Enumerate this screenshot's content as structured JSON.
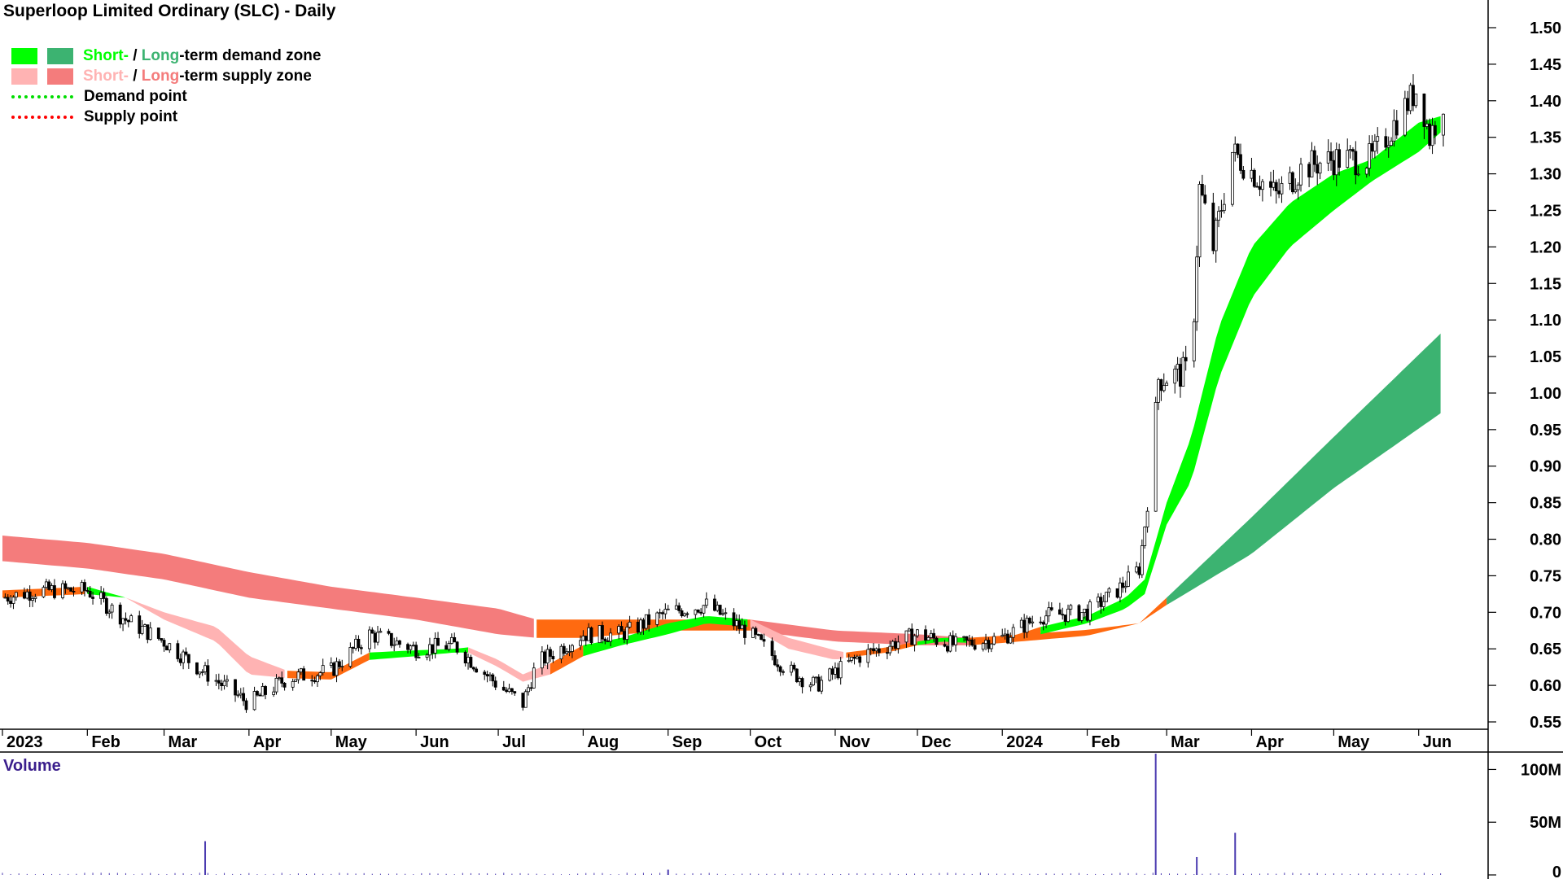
{
  "title": "Superloop Limited Ordinary (SLC) - Daily",
  "legend": {
    "row1": {
      "short": "Short-",
      "sep": " / ",
      "long": "Long",
      "rest": "-term demand zone"
    },
    "row2": {
      "short": "Short-",
      "sep": " / ",
      "long": "Long",
      "rest": "-term supply zone"
    },
    "row3": "Demand point",
    "row4": "Supply point"
  },
  "colors": {
    "short_demand": "#00ff00",
    "long_demand": "#3cb371",
    "short_supply": "#ffb3b3",
    "long_supply": "#f47c7c",
    "supply_to_demand": "#ff6a10",
    "demand_point": "#00dd00",
    "supply_point": "#ff0000",
    "volume_bar": "#4b3bb0",
    "volume_label": "#3a1e8c"
  },
  "volume_label": "Volume",
  "chart_data": [
    {
      "type": "candlestick",
      "title": "Superloop Limited Ordinary (SLC) - Daily",
      "x_ticks": [
        "2023",
        "Feb",
        "Mar",
        "Apr",
        "May",
        "Jun",
        "Jul",
        "Aug",
        "Sep",
        "Oct",
        "Nov",
        "Dec",
        "2024",
        "Feb",
        "Mar",
        "Apr",
        "May",
        "Jun"
      ],
      "y_ticks": [
        "0.55",
        "0.60",
        "0.65",
        "0.70",
        "0.75",
        "0.80",
        "0.85",
        "0.90",
        "0.95",
        "1.00",
        "1.05",
        "1.10",
        "1.15",
        "1.20",
        "1.25",
        "1.30",
        "1.35",
        "1.40",
        "1.45",
        "1.50"
      ],
      "ylim": [
        0.53,
        1.52
      ],
      "price_path": [
        {
          "x": "2023-01-01",
          "y": 0.72
        },
        {
          "x": "2023-01-15",
          "y": 0.73
        },
        {
          "x": "2023-02-01",
          "y": 0.73
        },
        {
          "x": "2023-02-15",
          "y": 0.69
        },
        {
          "x": "2023-03-01",
          "y": 0.66
        },
        {
          "x": "2023-03-15",
          "y": 0.62
        },
        {
          "x": "2023-04-01",
          "y": 0.575
        },
        {
          "x": "2023-04-15",
          "y": 0.61
        },
        {
          "x": "2023-05-01",
          "y": 0.62
        },
        {
          "x": "2023-05-15",
          "y": 0.67
        },
        {
          "x": "2023-06-01",
          "y": 0.65
        },
        {
          "x": "2023-06-15",
          "y": 0.655
        },
        {
          "x": "2023-07-01",
          "y": 0.6
        },
        {
          "x": "2023-07-10",
          "y": 0.575
        },
        {
          "x": "2023-07-15",
          "y": 0.63
        },
        {
          "x": "2023-08-01",
          "y": 0.67
        },
        {
          "x": "2023-08-15",
          "y": 0.67
        },
        {
          "x": "2023-09-01",
          "y": 0.7
        },
        {
          "x": "2023-09-15",
          "y": 0.71
        },
        {
          "x": "2023-10-01",
          "y": 0.67
        },
        {
          "x": "2023-10-15",
          "y": 0.62
        },
        {
          "x": "2023-10-25",
          "y": 0.6
        },
        {
          "x": "2023-11-10",
          "y": 0.64
        },
        {
          "x": "2023-12-01",
          "y": 0.67
        },
        {
          "x": "2023-12-15",
          "y": 0.655
        },
        {
          "x": "2024-01-01",
          "y": 0.665
        },
        {
          "x": "2024-01-15",
          "y": 0.695
        },
        {
          "x": "2024-02-01",
          "y": 0.7
        },
        {
          "x": "2024-02-12",
          "y": 0.73
        },
        {
          "x": "2024-02-20",
          "y": 0.76
        },
        {
          "x": "2024-02-23",
          "y": 0.85
        },
        {
          "x": "2024-02-27",
          "y": 1.02
        },
        {
          "x": "2024-03-10",
          "y": 1.03
        },
        {
          "x": "2024-03-13",
          "y": 1.28
        },
        {
          "x": "2024-03-18",
          "y": 1.2
        },
        {
          "x": "2024-03-25",
          "y": 1.33
        },
        {
          "x": "2024-04-10",
          "y": 1.27
        },
        {
          "x": "2024-04-20",
          "y": 1.31
        },
        {
          "x": "2024-05-01",
          "y": 1.32
        },
        {
          "x": "2024-05-15",
          "y": 1.32
        },
        {
          "x": "2024-05-25",
          "y": 1.38
        },
        {
          "x": "2024-06-01",
          "y": 1.42
        },
        {
          "x": "2024-06-05",
          "y": 1.35
        },
        {
          "x": "2024-06-10",
          "y": 1.4
        }
      ],
      "short_term_zone": [
        {
          "x": "2023-01-01",
          "top": 0.73,
          "bottom": 0.72,
          "state": "supply-to-demand"
        },
        {
          "x": "2023-02-01",
          "top": 0.735,
          "bottom": 0.725,
          "state": "demand"
        },
        {
          "x": "2023-02-15",
          "top": 0.72,
          "bottom": 0.72,
          "state": "supply"
        },
        {
          "x": "2023-03-01",
          "top": 0.7,
          "bottom": 0.69,
          "state": "supply"
        },
        {
          "x": "2023-03-20",
          "top": 0.68,
          "bottom": 0.66,
          "state": "supply"
        },
        {
          "x": "2023-04-01",
          "top": 0.64,
          "bottom": 0.615,
          "state": "supply"
        },
        {
          "x": "2023-04-15",
          "top": 0.62,
          "bottom": 0.61,
          "state": "supply-to-demand"
        },
        {
          "x": "2023-05-01",
          "top": 0.618,
          "bottom": 0.608,
          "state": "supply-to-demand"
        },
        {
          "x": "2023-05-15",
          "top": 0.645,
          "bottom": 0.635,
          "state": "demand"
        },
        {
          "x": "2023-06-01",
          "top": 0.648,
          "bottom": 0.64,
          "state": "demand"
        },
        {
          "x": "2023-06-15",
          "top": 0.65,
          "bottom": 0.645,
          "state": "demand"
        },
        {
          "x": "2023-06-20",
          "top": 0.652,
          "bottom": 0.645,
          "state": "supply"
        },
        {
          "x": "2023-07-01",
          "top": 0.635,
          "bottom": 0.625,
          "state": "supply"
        },
        {
          "x": "2023-07-10",
          "top": 0.615,
          "bottom": 0.605,
          "state": "supply"
        },
        {
          "x": "2023-07-20",
          "top": 0.63,
          "bottom": 0.615,
          "state": "supply-to-demand"
        },
        {
          "x": "2023-08-01",
          "top": 0.655,
          "bottom": 0.64,
          "state": "demand"
        },
        {
          "x": "2023-08-15",
          "top": 0.665,
          "bottom": 0.655,
          "state": "demand"
        },
        {
          "x": "2023-09-01",
          "top": 0.685,
          "bottom": 0.67,
          "state": "demand"
        },
        {
          "x": "2023-09-15",
          "top": 0.695,
          "bottom": 0.685,
          "state": "demand"
        },
        {
          "x": "2023-10-01",
          "top": 0.69,
          "bottom": 0.68,
          "state": "supply"
        },
        {
          "x": "2023-10-15",
          "top": 0.665,
          "bottom": 0.65,
          "state": "supply"
        },
        {
          "x": "2023-11-01",
          "top": 0.648,
          "bottom": 0.635,
          "state": "supply"
        },
        {
          "x": "2023-11-05",
          "top": 0.645,
          "bottom": 0.638,
          "state": "supply-to-demand"
        },
        {
          "x": "2023-11-20",
          "top": 0.652,
          "bottom": 0.645,
          "state": "supply-to-demand"
        },
        {
          "x": "2023-12-01",
          "top": 0.66,
          "bottom": 0.655,
          "state": "demand"
        },
        {
          "x": "2023-12-10",
          "top": 0.665,
          "bottom": 0.66,
          "state": "demand"
        },
        {
          "x": "2023-12-20",
          "top": 0.665,
          "bottom": 0.658,
          "state": "supply-to-demand"
        },
        {
          "x": "2024-01-05",
          "top": 0.668,
          "bottom": 0.662,
          "state": "supply-to-demand"
        },
        {
          "x": "2024-01-15",
          "top": 0.68,
          "bottom": 0.67,
          "state": "demand"
        },
        {
          "x": "2024-02-01",
          "top": 0.695,
          "bottom": 0.685,
          "state": "demand"
        },
        {
          "x": "2024-02-15",
          "top": 0.72,
          "bottom": 0.705,
          "state": "demand"
        },
        {
          "x": "2024-02-22",
          "top": 0.745,
          "bottom": 0.725,
          "state": "demand"
        },
        {
          "x": "2024-03-01",
          "top": 0.85,
          "bottom": 0.82,
          "state": "demand"
        },
        {
          "x": "2024-03-10",
          "top": 0.94,
          "bottom": 0.88,
          "state": "demand"
        },
        {
          "x": "2024-03-20",
          "top": 1.09,
          "bottom": 1.02,
          "state": "demand"
        },
        {
          "x": "2024-04-01",
          "top": 1.2,
          "bottom": 1.13,
          "state": "demand"
        },
        {
          "x": "2024-04-15",
          "top": 1.26,
          "bottom": 1.2,
          "state": "demand"
        },
        {
          "x": "2024-05-01",
          "top": 1.3,
          "bottom": 1.25,
          "state": "demand"
        },
        {
          "x": "2024-05-15",
          "top": 1.32,
          "bottom": 1.29,
          "state": "demand"
        },
        {
          "x": "2024-06-01",
          "top": 1.37,
          "bottom": 1.33,
          "state": "demand"
        },
        {
          "x": "2024-06-10",
          "top": 1.38,
          "bottom": 1.36,
          "state": "demand"
        }
      ],
      "long_term_zone": [
        {
          "x": "2023-01-01",
          "top": 0.805,
          "bottom": 0.77,
          "state": "supply"
        },
        {
          "x": "2023-02-01",
          "top": 0.795,
          "bottom": 0.76,
          "state": "supply"
        },
        {
          "x": "2023-03-01",
          "top": 0.78,
          "bottom": 0.745,
          "state": "supply"
        },
        {
          "x": "2023-04-01",
          "top": 0.755,
          "bottom": 0.72,
          "state": "supply"
        },
        {
          "x": "2023-05-01",
          "top": 0.735,
          "bottom": 0.705,
          "state": "supply"
        },
        {
          "x": "2023-06-01",
          "top": 0.72,
          "bottom": 0.69,
          "state": "supply"
        },
        {
          "x": "2023-07-01",
          "top": 0.705,
          "bottom": 0.67,
          "state": "supply"
        },
        {
          "x": "2023-07-15",
          "top": 0.69,
          "bottom": 0.665,
          "state": "supply-to-demand"
        },
        {
          "x": "2023-08-01",
          "top": 0.69,
          "bottom": 0.665,
          "state": "supply-to-demand"
        },
        {
          "x": "2023-09-01",
          "top": 0.69,
          "bottom": 0.675,
          "state": "supply-to-demand"
        },
        {
          "x": "2023-10-01",
          "top": 0.69,
          "bottom": 0.675,
          "state": "supply"
        },
        {
          "x": "2023-11-01",
          "top": 0.675,
          "bottom": 0.66,
          "state": "supply"
        },
        {
          "x": "2023-12-01",
          "top": 0.67,
          "bottom": 0.655,
          "state": "supply"
        },
        {
          "x": "2023-12-20",
          "top": 0.665,
          "bottom": 0.655,
          "state": "supply-to-demand"
        },
        {
          "x": "2024-01-01",
          "top": 0.668,
          "bottom": 0.658,
          "state": "supply-to-demand"
        },
        {
          "x": "2024-02-01",
          "top": 0.676,
          "bottom": 0.668,
          "state": "supply-to-demand"
        },
        {
          "x": "2024-02-20",
          "top": 0.685,
          "bottom": 0.685,
          "state": "supply-to-demand"
        },
        {
          "x": "2024-03-01",
          "top": 0.72,
          "bottom": 0.71,
          "state": "demand"
        },
        {
          "x": "2024-04-01",
          "top": 0.83,
          "bottom": 0.78,
          "state": "demand"
        },
        {
          "x": "2024-05-01",
          "top": 0.94,
          "bottom": 0.87,
          "state": "demand"
        },
        {
          "x": "2024-06-10",
          "top": 1.085,
          "bottom": 0.975,
          "state": "demand"
        }
      ]
    },
    {
      "type": "bar",
      "title": "Volume",
      "y_ticks": [
        "0",
        "50M",
        "100M"
      ],
      "ylim": [
        0,
        115000000
      ],
      "baseline_volume_approx": 1500000,
      "spikes": [
        {
          "x": "2023-03-16",
          "value": 32000000
        },
        {
          "x": "2023-09-01",
          "value": 5000000
        },
        {
          "x": "2024-02-26",
          "value": 115000000
        },
        {
          "x": "2024-03-12",
          "value": 17000000
        },
        {
          "x": "2024-03-26",
          "value": 40000000
        }
      ]
    }
  ]
}
